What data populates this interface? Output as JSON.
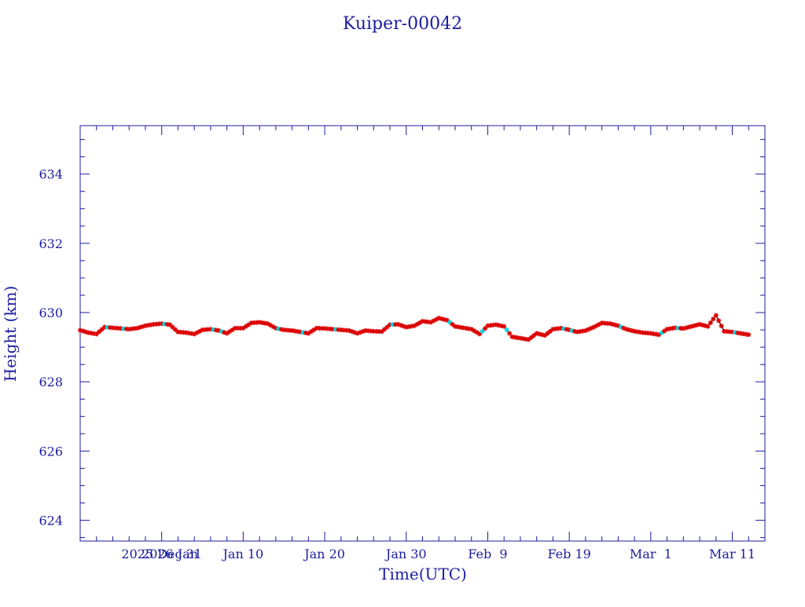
{
  "chart_data": {
    "type": "scatter",
    "title": "Kuiper-00042",
    "xlabel": "Time(UTC)",
    "ylabel": "Height (km)",
    "xlim": [
      "2025-12-21",
      "2026-03-15"
    ],
    "ylim": [
      623.4,
      635.4
    ],
    "x_ticks": [
      {
        "date": "2025-12-31",
        "label": "2025 Dec 31"
      },
      {
        "date": "2026-01-01",
        "label": "2026 Jan"
      },
      {
        "date": "2026-01-10",
        "label": "Jan 10"
      },
      {
        "date": "2026-01-20",
        "label": "Jan 20"
      },
      {
        "date": "2026-01-30",
        "label": "Jan 30"
      },
      {
        "date": "2026-02-09",
        "label": "Feb  9"
      },
      {
        "date": "2026-02-19",
        "label": "Feb 19"
      },
      {
        "date": "2026-03-01",
        "label": "Mar  1"
      },
      {
        "date": "2026-03-11",
        "label": "Mar 11"
      }
    ],
    "y_ticks": [
      624,
      626,
      628,
      630,
      632,
      634
    ],
    "grid": false,
    "colors": {
      "frame": "#1c1ca0",
      "line": "#000000",
      "points": "#dd0000",
      "alt_points": "#00d8e0"
    },
    "series": [
      {
        "color": "#000000",
        "style": "line",
        "points": [
          [
            "2025-12-21",
            629.49
          ],
          [
            "2025-12-22",
            629.42
          ],
          [
            "2025-12-23",
            629.38
          ],
          [
            "2025-12-24",
            629.58
          ],
          [
            "2025-12-25",
            629.56
          ],
          [
            "2025-12-26",
            629.54
          ],
          [
            "2025-12-27",
            629.52
          ],
          [
            "2025-12-28",
            629.55
          ],
          [
            "2025-12-29",
            629.62
          ],
          [
            "2025-12-30",
            629.66
          ],
          [
            "2025-12-31",
            629.68
          ],
          [
            "2026-01-01",
            629.65
          ],
          [
            "2026-01-02",
            629.44
          ],
          [
            "2026-01-03",
            629.42
          ],
          [
            "2026-01-04",
            629.38
          ],
          [
            "2026-01-05",
            629.5
          ],
          [
            "2026-01-06",
            629.52
          ],
          [
            "2026-01-07",
            629.48
          ],
          [
            "2026-01-08",
            629.4
          ],
          [
            "2026-01-09",
            629.55
          ],
          [
            "2026-01-10",
            629.55
          ],
          [
            "2026-01-11",
            629.7
          ],
          [
            "2026-01-12",
            629.72
          ],
          [
            "2026-01-13",
            629.68
          ],
          [
            "2026-01-14",
            629.55
          ],
          [
            "2026-01-15",
            629.5
          ],
          [
            "2026-01-16",
            629.48
          ],
          [
            "2026-01-17",
            629.44
          ],
          [
            "2026-01-18",
            629.4
          ],
          [
            "2026-01-19",
            629.55
          ],
          [
            "2026-01-20",
            629.54
          ],
          [
            "2026-01-21",
            629.52
          ],
          [
            "2026-01-22",
            629.5
          ],
          [
            "2026-01-23",
            629.48
          ],
          [
            "2026-01-24",
            629.4
          ],
          [
            "2026-01-25",
            629.48
          ],
          [
            "2026-01-26",
            629.46
          ],
          [
            "2026-01-27",
            629.45
          ],
          [
            "2026-01-28",
            629.65
          ],
          [
            "2026-01-29",
            629.66
          ],
          [
            "2026-01-30",
            629.58
          ],
          [
            "2026-01-31",
            629.62
          ],
          [
            "2026-02-01",
            629.75
          ],
          [
            "2026-02-02",
            629.72
          ],
          [
            "2026-02-03",
            629.84
          ],
          [
            "2026-02-04",
            629.78
          ],
          [
            "2026-02-05",
            629.6
          ],
          [
            "2026-02-06",
            629.56
          ],
          [
            "2026-02-07",
            629.52
          ],
          [
            "2026-02-08",
            629.38
          ],
          [
            "2026-02-09",
            629.62
          ],
          [
            "2026-02-10",
            629.65
          ],
          [
            "2026-02-11",
            629.6
          ],
          [
            "2026-02-12",
            629.3
          ],
          [
            "2026-02-13",
            629.26
          ],
          [
            "2026-02-14",
            629.22
          ],
          [
            "2026-02-15",
            629.4
          ],
          [
            "2026-02-16",
            629.34
          ],
          [
            "2026-02-17",
            629.52
          ],
          [
            "2026-02-18",
            629.55
          ],
          [
            "2026-02-19",
            629.5
          ],
          [
            "2026-02-20",
            629.44
          ],
          [
            "2026-02-21",
            629.48
          ],
          [
            "2026-02-22",
            629.58
          ],
          [
            "2026-02-23",
            629.7
          ],
          [
            "2026-02-24",
            629.68
          ],
          [
            "2026-02-25",
            629.62
          ],
          [
            "2026-02-26",
            629.52
          ],
          [
            "2026-02-27",
            629.46
          ],
          [
            "2026-02-28",
            629.42
          ],
          [
            "2026-03-01",
            629.4
          ],
          [
            "2026-03-02",
            629.36
          ],
          [
            "2026-03-03",
            629.52
          ],
          [
            "2026-03-04",
            629.56
          ],
          [
            "2026-03-05",
            629.54
          ],
          [
            "2026-03-06",
            629.6
          ],
          [
            "2026-03-07",
            629.66
          ],
          [
            "2026-03-08",
            629.6
          ],
          [
            "2026-03-09",
            629.92
          ],
          [
            "2026-03-10",
            629.46
          ],
          [
            "2026-03-11",
            629.44
          ],
          [
            "2026-03-12",
            629.4
          ],
          [
            "2026-03-13",
            629.36
          ]
        ]
      }
    ]
  }
}
